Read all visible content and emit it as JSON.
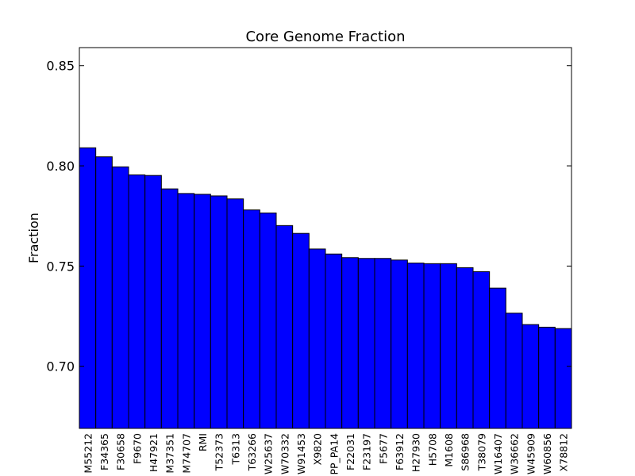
{
  "chart_data": {
    "type": "bar",
    "title": "Core Genome Fraction",
    "xlabel": "",
    "ylabel": "Fraction",
    "ylim": [
      0.669,
      0.859
    ],
    "yticks": [
      0.7,
      0.75,
      0.8,
      0.85
    ],
    "ytick_labels": [
      "0.70",
      "0.75",
      "0.80",
      "0.85"
    ],
    "grid": false,
    "bar_color": "#0000ff",
    "edge_color": "#000000",
    "categories": [
      "M55212",
      "F34365",
      "F30658",
      "F9670",
      "H47921",
      "M37351",
      "M74707",
      "RMI",
      "T52373",
      "T6313",
      "T63266",
      "W25637",
      "W70332",
      "W91453",
      "X9820",
      "PP_PA14",
      "F22031",
      "F23197",
      "F5677",
      "F63912",
      "H27930",
      "H5708",
      "M1608",
      "S86968",
      "T38079",
      "W16407",
      "W36662",
      "W45909",
      "W60856",
      "X78812"
    ],
    "values": [
      0.809,
      0.8045,
      0.7995,
      0.7955,
      0.7952,
      0.7885,
      0.7862,
      0.7858,
      0.785,
      0.7835,
      0.778,
      0.7765,
      0.7702,
      0.7663,
      0.7585,
      0.756,
      0.7542,
      0.7538,
      0.7538,
      0.753,
      0.7515,
      0.7512,
      0.7512,
      0.7492,
      0.7472,
      0.739,
      0.7265,
      0.7208,
      0.7195,
      0.7188
    ]
  }
}
